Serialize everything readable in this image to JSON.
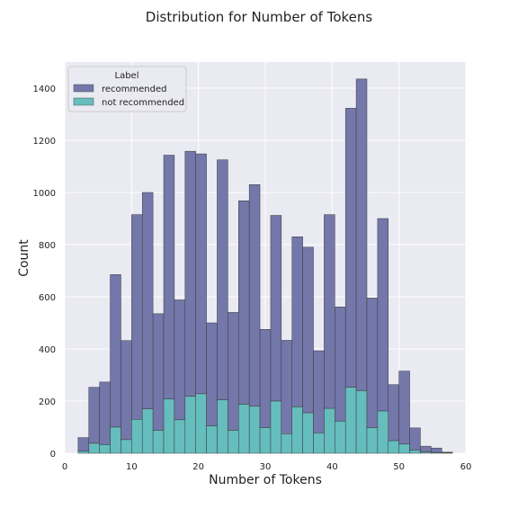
{
  "chart_data": {
    "type": "bar",
    "stacked": true,
    "title": "Distribution for Number of Tokens",
    "xlabel": "Number of Tokens",
    "ylabel": "Count",
    "xlim": [
      0,
      60
    ],
    "ylim": [
      0,
      1500
    ],
    "xticks": [
      0,
      10,
      20,
      30,
      40,
      50,
      60
    ],
    "yticks": [
      0,
      200,
      400,
      600,
      800,
      1000,
      1200,
      1400
    ],
    "grid": true,
    "legend": {
      "title": "Label",
      "position": "top-left"
    },
    "bin_edges": [
      2.0,
      3.6,
      5.2,
      6.8,
      8.4,
      10.0,
      11.6,
      13.2,
      14.8,
      16.4,
      18.0,
      19.6,
      21.2,
      22.8,
      24.4,
      26.0,
      27.6,
      29.2,
      30.8,
      32.4,
      34.0,
      35.6,
      37.2,
      38.8,
      40.4,
      42.0,
      43.6,
      45.2,
      46.8,
      48.4,
      50.0,
      51.6,
      53.2,
      54.8,
      56.4,
      58.0
    ],
    "series": [
      {
        "name": "not recommended",
        "color": "#66bdbd",
        "values": [
          8,
          38,
          33,
          100,
          52,
          130,
          170,
          88,
          208,
          128,
          218,
          228,
          105,
          205,
          88,
          188,
          180,
          98,
          200,
          75,
          178,
          155,
          78,
          172,
          123,
          253,
          240,
          98,
          162,
          48,
          35,
          12,
          5,
          3,
          2
        ]
      },
      {
        "name": "recommended",
        "color": "#7377aa",
        "values": [
          52,
          215,
          240,
          585,
          380,
          785,
          830,
          447,
          935,
          460,
          940,
          920,
          395,
          920,
          452,
          780,
          850,
          377,
          712,
          358,
          652,
          635,
          315,
          743,
          438,
          1070,
          1195,
          497,
          738,
          215,
          280,
          85,
          22,
          17,
          2
        ]
      }
    ]
  }
}
